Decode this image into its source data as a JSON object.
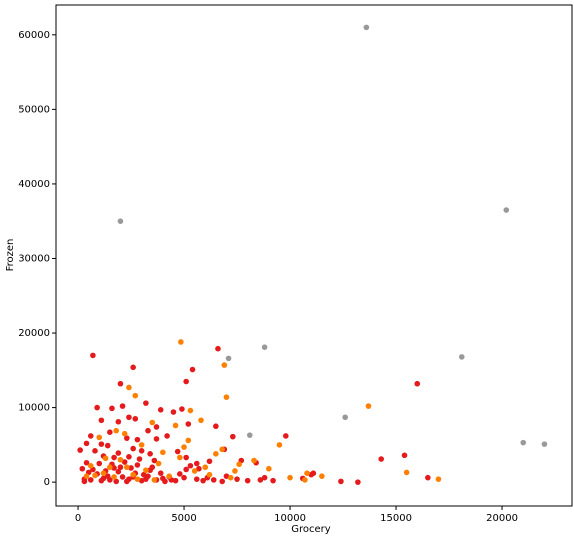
{
  "chart_data": {
    "type": "scatter",
    "xlabel": "Grocery",
    "ylabel": "Frozen",
    "xlim": [
      -1040,
      23300
    ],
    "ylim": [
      -3200,
      64000
    ],
    "xticks": [
      0,
      5000,
      10000,
      15000,
      20000
    ],
    "yticks": [
      0,
      10000,
      20000,
      30000,
      40000,
      50000,
      60000
    ],
    "series": [
      {
        "color": "#e41a1c",
        "x": [
          700,
          6600,
          2600,
          5400,
          16000,
          5100,
          2000,
          3200,
          900,
          1600,
          2100,
          3900,
          4500,
          4900,
          5200,
          6500,
          7300,
          9800,
          1100,
          1900,
          2400,
          2700,
          3700,
          2800,
          3300,
          1500,
          600,
          400,
          1100,
          2300,
          3700,
          4200,
          100,
          800,
          1400,
          1900,
          2600,
          3400,
          4700,
          5100,
          6200,
          6900,
          8400,
          15400,
          14300,
          16500,
          13200,
          12400,
          11000,
          10600,
          9200,
          8600,
          8000,
          7500,
          6800,
          6400,
          5900,
          5600,
          5000,
          4600,
          4100,
          3700,
          3300,
          3000,
          2700,
          2400,
          2100,
          1800,
          1500,
          1200,
          900,
          600,
          300,
          200,
          400,
          700,
          1000,
          1300,
          1600,
          1900,
          2200,
          2500,
          2800,
          3100,
          3400,
          3600,
          3900,
          4300,
          5100,
          5600,
          1700,
          1200,
          2900,
          3500,
          4000,
          4400,
          4800,
          5300,
          1400,
          2000,
          2300,
          2600,
          3200,
          5700,
          6100,
          7000,
          7700,
          8800,
          11100,
          300,
          500,
          1100,
          1700,
          2400,
          3000
        ],
        "values": [
          17000,
          17900,
          15400,
          15100,
          13200,
          13500,
          13200,
          10600,
          10000,
          9900,
          10200,
          9700,
          9400,
          9800,
          7800,
          7500,
          6100,
          6200,
          8300,
          8100,
          8700,
          8500,
          7400,
          5700,
          6900,
          6700,
          6200,
          5200,
          5100,
          5900,
          5800,
          6200,
          4300,
          4200,
          4900,
          3900,
          4500,
          3800,
          4100,
          3300,
          2800,
          4400,
          2600,
          3600,
          3100,
          600,
          0,
          100,
          1000,
          500,
          200,
          300,
          200,
          400,
          100,
          300,
          200,
          400,
          600,
          200,
          100,
          300,
          800,
          200,
          1200,
          400,
          700,
          100,
          300,
          500,
          1100,
          300,
          100,
          1800,
          2600,
          1700,
          2500,
          1500,
          2400,
          1400,
          2700,
          1900,
          2300,
          1000,
          1600,
          2900,
          1200,
          700,
          1700,
          2500,
          3300,
          3500,
          3100,
          2000,
          500,
          300,
          1100,
          2200,
          800,
          2000,
          100,
          700,
          400,
          1800,
          600,
          800,
          2900,
          600,
          1200,
          400,
          1300,
          200,
          1900,
          3400,
          4200
        ]
      },
      {
        "color": "#ff7f00",
        "x": [
          4850,
          6900,
          7000,
          13700,
          5300,
          2700,
          2400,
          4600,
          3500,
          2200,
          1800,
          5000,
          6800,
          9500,
          15500,
          17000,
          10800,
          11500,
          8300,
          9000,
          7600,
          6000,
          5500,
          4300,
          3800,
          3200,
          2600,
          2000,
          1500,
          1200,
          800,
          600,
          400,
          2800,
          3600,
          4800,
          5200,
          6200,
          7200,
          1000,
          3000,
          4000,
          10000,
          10700,
          2300,
          1700,
          1300,
          5800,
          6500,
          7400
        ],
        "values": [
          18800,
          15700,
          11400,
          10200,
          9600,
          11600,
          12700,
          7600,
          8000,
          6500,
          6900,
          4700,
          4400,
          5000,
          1300,
          400,
          1200,
          800,
          2900,
          1800,
          2400,
          2000,
          1500,
          800,
          2500,
          1600,
          1000,
          3000,
          2000,
          1200,
          900,
          2200,
          800,
          400,
          300,
          3300,
          5600,
          1000,
          600,
          6000,
          5000,
          4000,
          600,
          300,
          2000,
          700,
          3200,
          8300,
          3800,
          1500
        ]
      },
      {
        "color": "#999999",
        "x": [
          13600,
          2000,
          20200,
          18100,
          8800,
          7100,
          12600,
          8100,
          21000,
          22000
        ],
        "values": [
          61000,
          35000,
          36500,
          16800,
          18100,
          16600,
          8700,
          6300,
          5300,
          5100
        ]
      }
    ]
  }
}
